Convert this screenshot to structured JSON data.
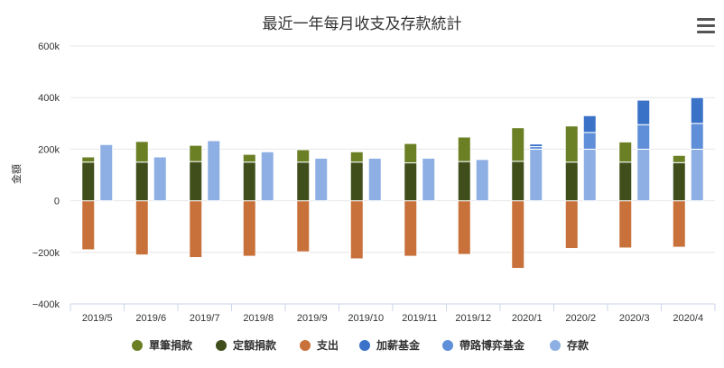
{
  "title": "最近一年每月收支及存款統計",
  "menu_icon": "hamburger-menu-icon",
  "chart_data": {
    "type": "bar",
    "title": "最近一年每月收支及存款統計",
    "xlabel": "",
    "ylabel": "金額",
    "ylim": [
      -400000,
      600000
    ],
    "yticks": [
      -400000,
      -200000,
      0,
      200000,
      400000,
      600000
    ],
    "ytick_labels": [
      "−400k",
      "−200k",
      "0",
      "200k",
      "400k",
      "600k"
    ],
    "grid": true,
    "legend_position": "bottom",
    "categories": [
      "2019/5",
      "2019/6",
      "2019/7",
      "2019/8",
      "2019/9",
      "2019/10",
      "2019/11",
      "2019/12",
      "2020/1",
      "2020/2",
      "2020/3",
      "2020/4"
    ],
    "series": [
      {
        "name": "單筆捐款",
        "stack": "A",
        "color": "#6b7f25",
        "values": [
          20000,
          80000,
          63000,
          30000,
          48000,
          40000,
          75000,
          95000,
          130000,
          140000,
          78000,
          28000
        ]
      },
      {
        "name": "定額捐款",
        "stack": "A",
        "color": "#3f4e1a",
        "values": [
          150000,
          150000,
          152000,
          150000,
          150000,
          150000,
          147000,
          152000,
          153000,
          150000,
          150000,
          148000
        ]
      },
      {
        "name": "支出",
        "stack": "A",
        "color": "#c8713a",
        "values": [
          -190000,
          -210000,
          -220000,
          -215000,
          -198000,
          -225000,
          -215000,
          -208000,
          -262000,
          -185000,
          -183000,
          -180000
        ]
      },
      {
        "name": "加薪基金",
        "stack": "B",
        "color": "#3a72c8",
        "values": [
          0,
          0,
          0,
          0,
          0,
          0,
          0,
          0,
          10000,
          65000,
          95000,
          100000
        ]
      },
      {
        "name": "帶路博弈基金",
        "stack": "B",
        "color": "#5f8fd8",
        "values": [
          0,
          0,
          0,
          0,
          0,
          0,
          0,
          0,
          10000,
          65000,
          95000,
          100000
        ]
      },
      {
        "name": "存款",
        "stack": "B",
        "color": "#8eafe4",
        "values": [
          218000,
          170000,
          233000,
          190000,
          165000,
          165000,
          165000,
          160000,
          200000,
          200000,
          200000,
          200000
        ]
      }
    ]
  },
  "colors": {
    "grid": "#e6e6e6",
    "axis": "#ccd6eb",
    "text": "#333333"
  }
}
